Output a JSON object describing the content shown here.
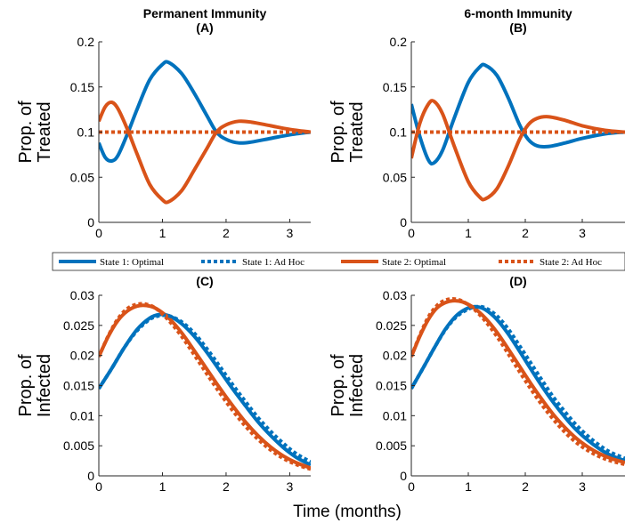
{
  "colors": {
    "state1": "#0072BD",
    "state2": "#D95319",
    "axis": "#262626"
  },
  "common": {
    "xlabel": "Time (months)",
    "legend": [
      "State 1:  Optimal",
      "State 1:  Ad Hoc",
      "State 2:  Optimal",
      "State 2:  Ad Hoc"
    ]
  },
  "chart_data": [
    {
      "type": "line",
      "title": "Permanent Immunity",
      "panel": "(A)",
      "ylabel": [
        "Prop. of",
        "Treated"
      ],
      "xlim": [
        0,
        3.33
      ],
      "ylim": [
        0,
        0.2
      ],
      "xticks": [
        0,
        1,
        2,
        3
      ],
      "yticks": [
        0,
        0.05,
        0.1,
        0.15,
        0.2
      ],
      "yticklabels": [
        "0",
        "0.05",
        "0.1",
        "0.15",
        "0.2"
      ],
      "series": [
        {
          "name": "State 1:  Optimal",
          "x": [
            0,
            0.1,
            0.2,
            0.3,
            0.45,
            0.6,
            0.8,
            1.0,
            1.1,
            1.3,
            1.5,
            1.7,
            1.85,
            2.0,
            2.2,
            2.4,
            2.7,
            3.0,
            3.33
          ],
          "y": [
            0.088,
            0.072,
            0.068,
            0.074,
            0.098,
            0.125,
            0.158,
            0.175,
            0.177,
            0.165,
            0.143,
            0.118,
            0.1,
            0.092,
            0.088,
            0.089,
            0.093,
            0.097,
            0.1
          ]
        },
        {
          "name": "State 1:  Ad Hoc",
          "x": [
            0,
            3.33
          ],
          "y": [
            0.1,
            0.1
          ]
        },
        {
          "name": "State 2:  Optimal",
          "x": [
            0,
            0.1,
            0.2,
            0.3,
            0.45,
            0.6,
            0.8,
            1.0,
            1.1,
            1.3,
            1.5,
            1.7,
            1.85,
            2.0,
            2.2,
            2.4,
            2.7,
            3.0,
            3.33
          ],
          "y": [
            0.112,
            0.128,
            0.133,
            0.126,
            0.103,
            0.076,
            0.042,
            0.025,
            0.023,
            0.035,
            0.058,
            0.082,
            0.1,
            0.108,
            0.112,
            0.111,
            0.107,
            0.103,
            0.1
          ]
        },
        {
          "name": "State 2:  Ad Hoc",
          "x": [
            0,
            3.33
          ],
          "y": [
            0.1,
            0.1
          ]
        }
      ]
    },
    {
      "type": "line",
      "title": "6-month Immunity",
      "panel": "(B)",
      "ylabel": [
        "Prop. of",
        "Treated"
      ],
      "xlim": [
        0,
        3.75
      ],
      "ylim": [
        0,
        0.2
      ],
      "xticks": [
        0,
        1,
        2,
        3
      ],
      "yticks": [
        0,
        0.05,
        0.1,
        0.15,
        0.2
      ],
      "yticklabels": [
        "0",
        "0.05",
        "0.1",
        "0.15",
        "0.2"
      ],
      "series": [
        {
          "name": "State 1:  Optimal",
          "x": [
            0,
            0.15,
            0.3,
            0.4,
            0.55,
            0.75,
            1.0,
            1.2,
            1.3,
            1.5,
            1.7,
            1.9,
            2.05,
            2.2,
            2.4,
            2.7,
            3.0,
            3.4,
            3.75
          ],
          "y": [
            0.131,
            0.095,
            0.069,
            0.066,
            0.08,
            0.115,
            0.155,
            0.172,
            0.174,
            0.163,
            0.138,
            0.108,
            0.092,
            0.085,
            0.084,
            0.088,
            0.093,
            0.098,
            0.1
          ]
        },
        {
          "name": "State 1:  Ad Hoc",
          "x": [
            0,
            3.75
          ],
          "y": [
            0.1,
            0.1
          ]
        },
        {
          "name": "State 2:  Optimal",
          "x": [
            0,
            0.15,
            0.3,
            0.4,
            0.55,
            0.75,
            1.0,
            1.2,
            1.3,
            1.5,
            1.7,
            1.9,
            2.05,
            2.2,
            2.4,
            2.7,
            3.0,
            3.4,
            3.75
          ],
          "y": [
            0.071,
            0.11,
            0.131,
            0.134,
            0.12,
            0.085,
            0.045,
            0.028,
            0.026,
            0.037,
            0.062,
            0.092,
            0.108,
            0.115,
            0.117,
            0.113,
            0.107,
            0.102,
            0.1
          ]
        },
        {
          "name": "State 2:  Ad Hoc",
          "x": [
            0,
            3.75
          ],
          "y": [
            0.1,
            0.1
          ]
        }
      ]
    },
    {
      "type": "line",
      "title": "",
      "panel": "(C)",
      "ylabel": [
        "Prop. of",
        "Infected"
      ],
      "xlim": [
        0,
        3.33
      ],
      "ylim": [
        0,
        0.03
      ],
      "xticks": [
        0,
        1,
        2,
        3
      ],
      "yticks": [
        0,
        0.005,
        0.01,
        0.015,
        0.02,
        0.025,
        0.03
      ],
      "yticklabels": [
        "0",
        "0.005",
        "0.01",
        "0.015",
        "0.02",
        "0.025",
        "0.03"
      ],
      "series": [
        {
          "name": "State 1:  Optimal",
          "x": [
            0,
            0.2,
            0.4,
            0.6,
            0.8,
            0.95,
            1.1,
            1.3,
            1.5,
            1.7,
            1.9,
            2.1,
            2.3,
            2.5,
            2.7,
            2.9,
            3.1,
            3.33
          ],
          "y": [
            0.0145,
            0.0178,
            0.0213,
            0.0243,
            0.0262,
            0.0268,
            0.0266,
            0.0253,
            0.0232,
            0.0205,
            0.0175,
            0.0145,
            0.0117,
            0.009,
            0.0067,
            0.0047,
            0.0031,
            0.0018
          ]
        },
        {
          "name": "State 1:  Ad Hoc",
          "x": [
            0,
            0.2,
            0.4,
            0.6,
            0.8,
            0.95,
            1.1,
            1.3,
            1.5,
            1.7,
            1.9,
            2.1,
            2.3,
            2.5,
            2.7,
            2.9,
            3.1,
            3.33
          ],
          "y": [
            0.0145,
            0.0178,
            0.0213,
            0.0241,
            0.026,
            0.0266,
            0.0266,
            0.0256,
            0.0237,
            0.0211,
            0.0182,
            0.0152,
            0.0124,
            0.0097,
            0.0074,
            0.0054,
            0.0037,
            0.0023
          ]
        },
        {
          "name": "State 2:  Optimal",
          "x": [
            0,
            0.15,
            0.3,
            0.45,
            0.6,
            0.75,
            0.9,
            1.1,
            1.3,
            1.5,
            1.7,
            1.9,
            2.1,
            2.3,
            2.5,
            2.7,
            2.9,
            3.1,
            3.33
          ],
          "y": [
            0.0198,
            0.0232,
            0.0258,
            0.0274,
            0.0282,
            0.0283,
            0.0278,
            0.0262,
            0.0238,
            0.0208,
            0.0177,
            0.0146,
            0.0117,
            0.009,
            0.0067,
            0.0048,
            0.0033,
            0.0022,
            0.0013
          ]
        },
        {
          "name": "State 2:  Ad Hoc",
          "x": [
            0,
            0.15,
            0.3,
            0.45,
            0.6,
            0.75,
            0.9,
            1.1,
            1.3,
            1.5,
            1.7,
            1.9,
            2.1,
            2.3,
            2.5,
            2.7,
            2.9,
            3.1,
            3.33
          ],
          "y": [
            0.0198,
            0.0233,
            0.0261,
            0.0278,
            0.0285,
            0.0285,
            0.0278,
            0.0258,
            0.0232,
            0.0201,
            0.0169,
            0.0138,
            0.0109,
            0.0083,
            0.0061,
            0.0043,
            0.0029,
            0.0019,
            0.0011
          ]
        }
      ]
    },
    {
      "type": "line",
      "title": "",
      "panel": "(D)",
      "ylabel": [
        "Prop. of",
        "Infected"
      ],
      "xlim": [
        0,
        3.75
      ],
      "ylim": [
        0,
        0.03
      ],
      "xticks": [
        0,
        1,
        2,
        3
      ],
      "yticks": [
        0,
        0.005,
        0.01,
        0.015,
        0.02,
        0.025,
        0.03
      ],
      "yticklabels": [
        "0",
        "0.005",
        "0.01",
        "0.015",
        "0.02",
        "0.025",
        "0.03"
      ],
      "series": [
        {
          "name": "State 1:  Optimal",
          "x": [
            0,
            0.2,
            0.4,
            0.6,
            0.8,
            1.0,
            1.15,
            1.3,
            1.5,
            1.7,
            1.9,
            2.1,
            2.3,
            2.5,
            2.7,
            2.9,
            3.1,
            3.3,
            3.5,
            3.75
          ],
          "y": [
            0.0145,
            0.0178,
            0.0212,
            0.0244,
            0.0267,
            0.0279,
            0.0281,
            0.0276,
            0.026,
            0.0236,
            0.0207,
            0.0177,
            0.0148,
            0.0121,
            0.0097,
            0.0076,
            0.0059,
            0.0045,
            0.0034,
            0.0025
          ]
        },
        {
          "name": "State 1:  Ad Hoc",
          "x": [
            0,
            0.2,
            0.4,
            0.6,
            0.8,
            1.0,
            1.15,
            1.3,
            1.5,
            1.7,
            1.9,
            2.1,
            2.3,
            2.5,
            2.7,
            2.9,
            3.1,
            3.3,
            3.5,
            3.75
          ],
          "y": [
            0.0145,
            0.0178,
            0.0212,
            0.0243,
            0.0265,
            0.0277,
            0.0281,
            0.0279,
            0.0266,
            0.0244,
            0.0216,
            0.0187,
            0.0158,
            0.013,
            0.0106,
            0.0084,
            0.0066,
            0.0051,
            0.0039,
            0.0029
          ]
        },
        {
          "name": "State 2:  Optimal",
          "x": [
            0,
            0.15,
            0.3,
            0.45,
            0.6,
            0.75,
            0.9,
            1.1,
            1.3,
            1.5,
            1.7,
            1.9,
            2.1,
            2.3,
            2.5,
            2.7,
            2.9,
            3.1,
            3.3,
            3.5,
            3.75
          ],
          "y": [
            0.0198,
            0.0232,
            0.026,
            0.0279,
            0.0288,
            0.0291,
            0.0289,
            0.0279,
            0.0262,
            0.0239,
            0.0211,
            0.0182,
            0.0153,
            0.0126,
            0.0101,
            0.008,
            0.0062,
            0.0048,
            0.0037,
            0.0029,
            0.0022
          ]
        },
        {
          "name": "State 2:  Ad Hoc",
          "x": [
            0,
            0.15,
            0.3,
            0.45,
            0.6,
            0.75,
            0.9,
            1.1,
            1.3,
            1.5,
            1.7,
            1.9,
            2.1,
            2.3,
            2.5,
            2.7,
            2.9,
            3.1,
            3.3,
            3.5,
            3.75
          ],
          "y": [
            0.0198,
            0.0234,
            0.0264,
            0.0283,
            0.0292,
            0.0294,
            0.029,
            0.0277,
            0.0257,
            0.0232,
            0.0203,
            0.0173,
            0.0144,
            0.0117,
            0.0093,
            0.0072,
            0.0055,
            0.0042,
            0.0032,
            0.0025,
            0.0019
          ]
        }
      ]
    }
  ]
}
